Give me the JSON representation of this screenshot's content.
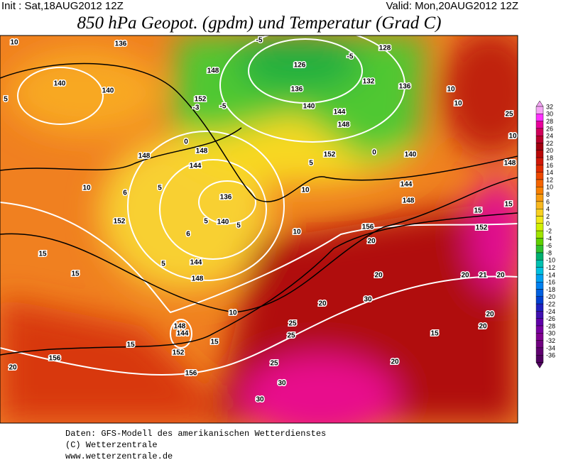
{
  "header": {
    "init": "Init : Sat,18AUG2012 12Z",
    "valid": "Valid: Mon,20AUG2012 12Z",
    "title": "850 hPa Geopot. (gpdm) und Temperatur (Grad C)"
  },
  "colorbar": {
    "levels": [
      32,
      30,
      28,
      26,
      24,
      22,
      20,
      18,
      16,
      14,
      12,
      10,
      8,
      6,
      4,
      2,
      0,
      -2,
      -4,
      -6,
      -8,
      -10,
      -12,
      -14,
      -16,
      -18,
      -20,
      -22,
      -24,
      -26,
      -28,
      -30,
      -32,
      -34,
      -36
    ],
    "colors": [
      "#f4a6f4",
      "#ff30ff",
      "#e8009a",
      "#d0005a",
      "#b8002c",
      "#a00010",
      "#b80808",
      "#d01808",
      "#e02c00",
      "#ec4800",
      "#f46400",
      "#f88000",
      "#f89c10",
      "#f8b820",
      "#f8d020",
      "#f0e818",
      "#d0f000",
      "#a0e400",
      "#60d000",
      "#30c030",
      "#00b070",
      "#00c0b0",
      "#00c0e0",
      "#00a0f0",
      "#0080f0",
      "#0060e0",
      "#0040d0",
      "#2020c0",
      "#4010b0",
      "#6000a8",
      "#7800a0",
      "#800090",
      "#700080",
      "#600070",
      "#500060"
    ]
  },
  "geopotential_labels": [
    136,
    140,
    140,
    148,
    152,
    126,
    136,
    140,
    144,
    148,
    132,
    128,
    136,
    148,
    144,
    148,
    140,
    136,
    140,
    144,
    148,
    152,
    156,
    152,
    148,
    144,
    148,
    144,
    152,
    156,
    156,
    148,
    152
  ],
  "temperature_labels": [
    10,
    5,
    10,
    6,
    15,
    15,
    15,
    20,
    10,
    15,
    20,
    25,
    25,
    30,
    20,
    20,
    25,
    30,
    30,
    15,
    20,
    20,
    10,
    10,
    25,
    10,
    15,
    15,
    20,
    21,
    20,
    20,
    10,
    10,
    -5,
    -5,
    -5,
    -3,
    0,
    0,
    5,
    5,
    5,
    6,
    5,
    5
  ],
  "footer": [
    "Daten: GFS-Modell des amerikanischen Wetterdienstes",
    "(C) Wetterzentrale",
    "www.wetterzentrale.de"
  ]
}
